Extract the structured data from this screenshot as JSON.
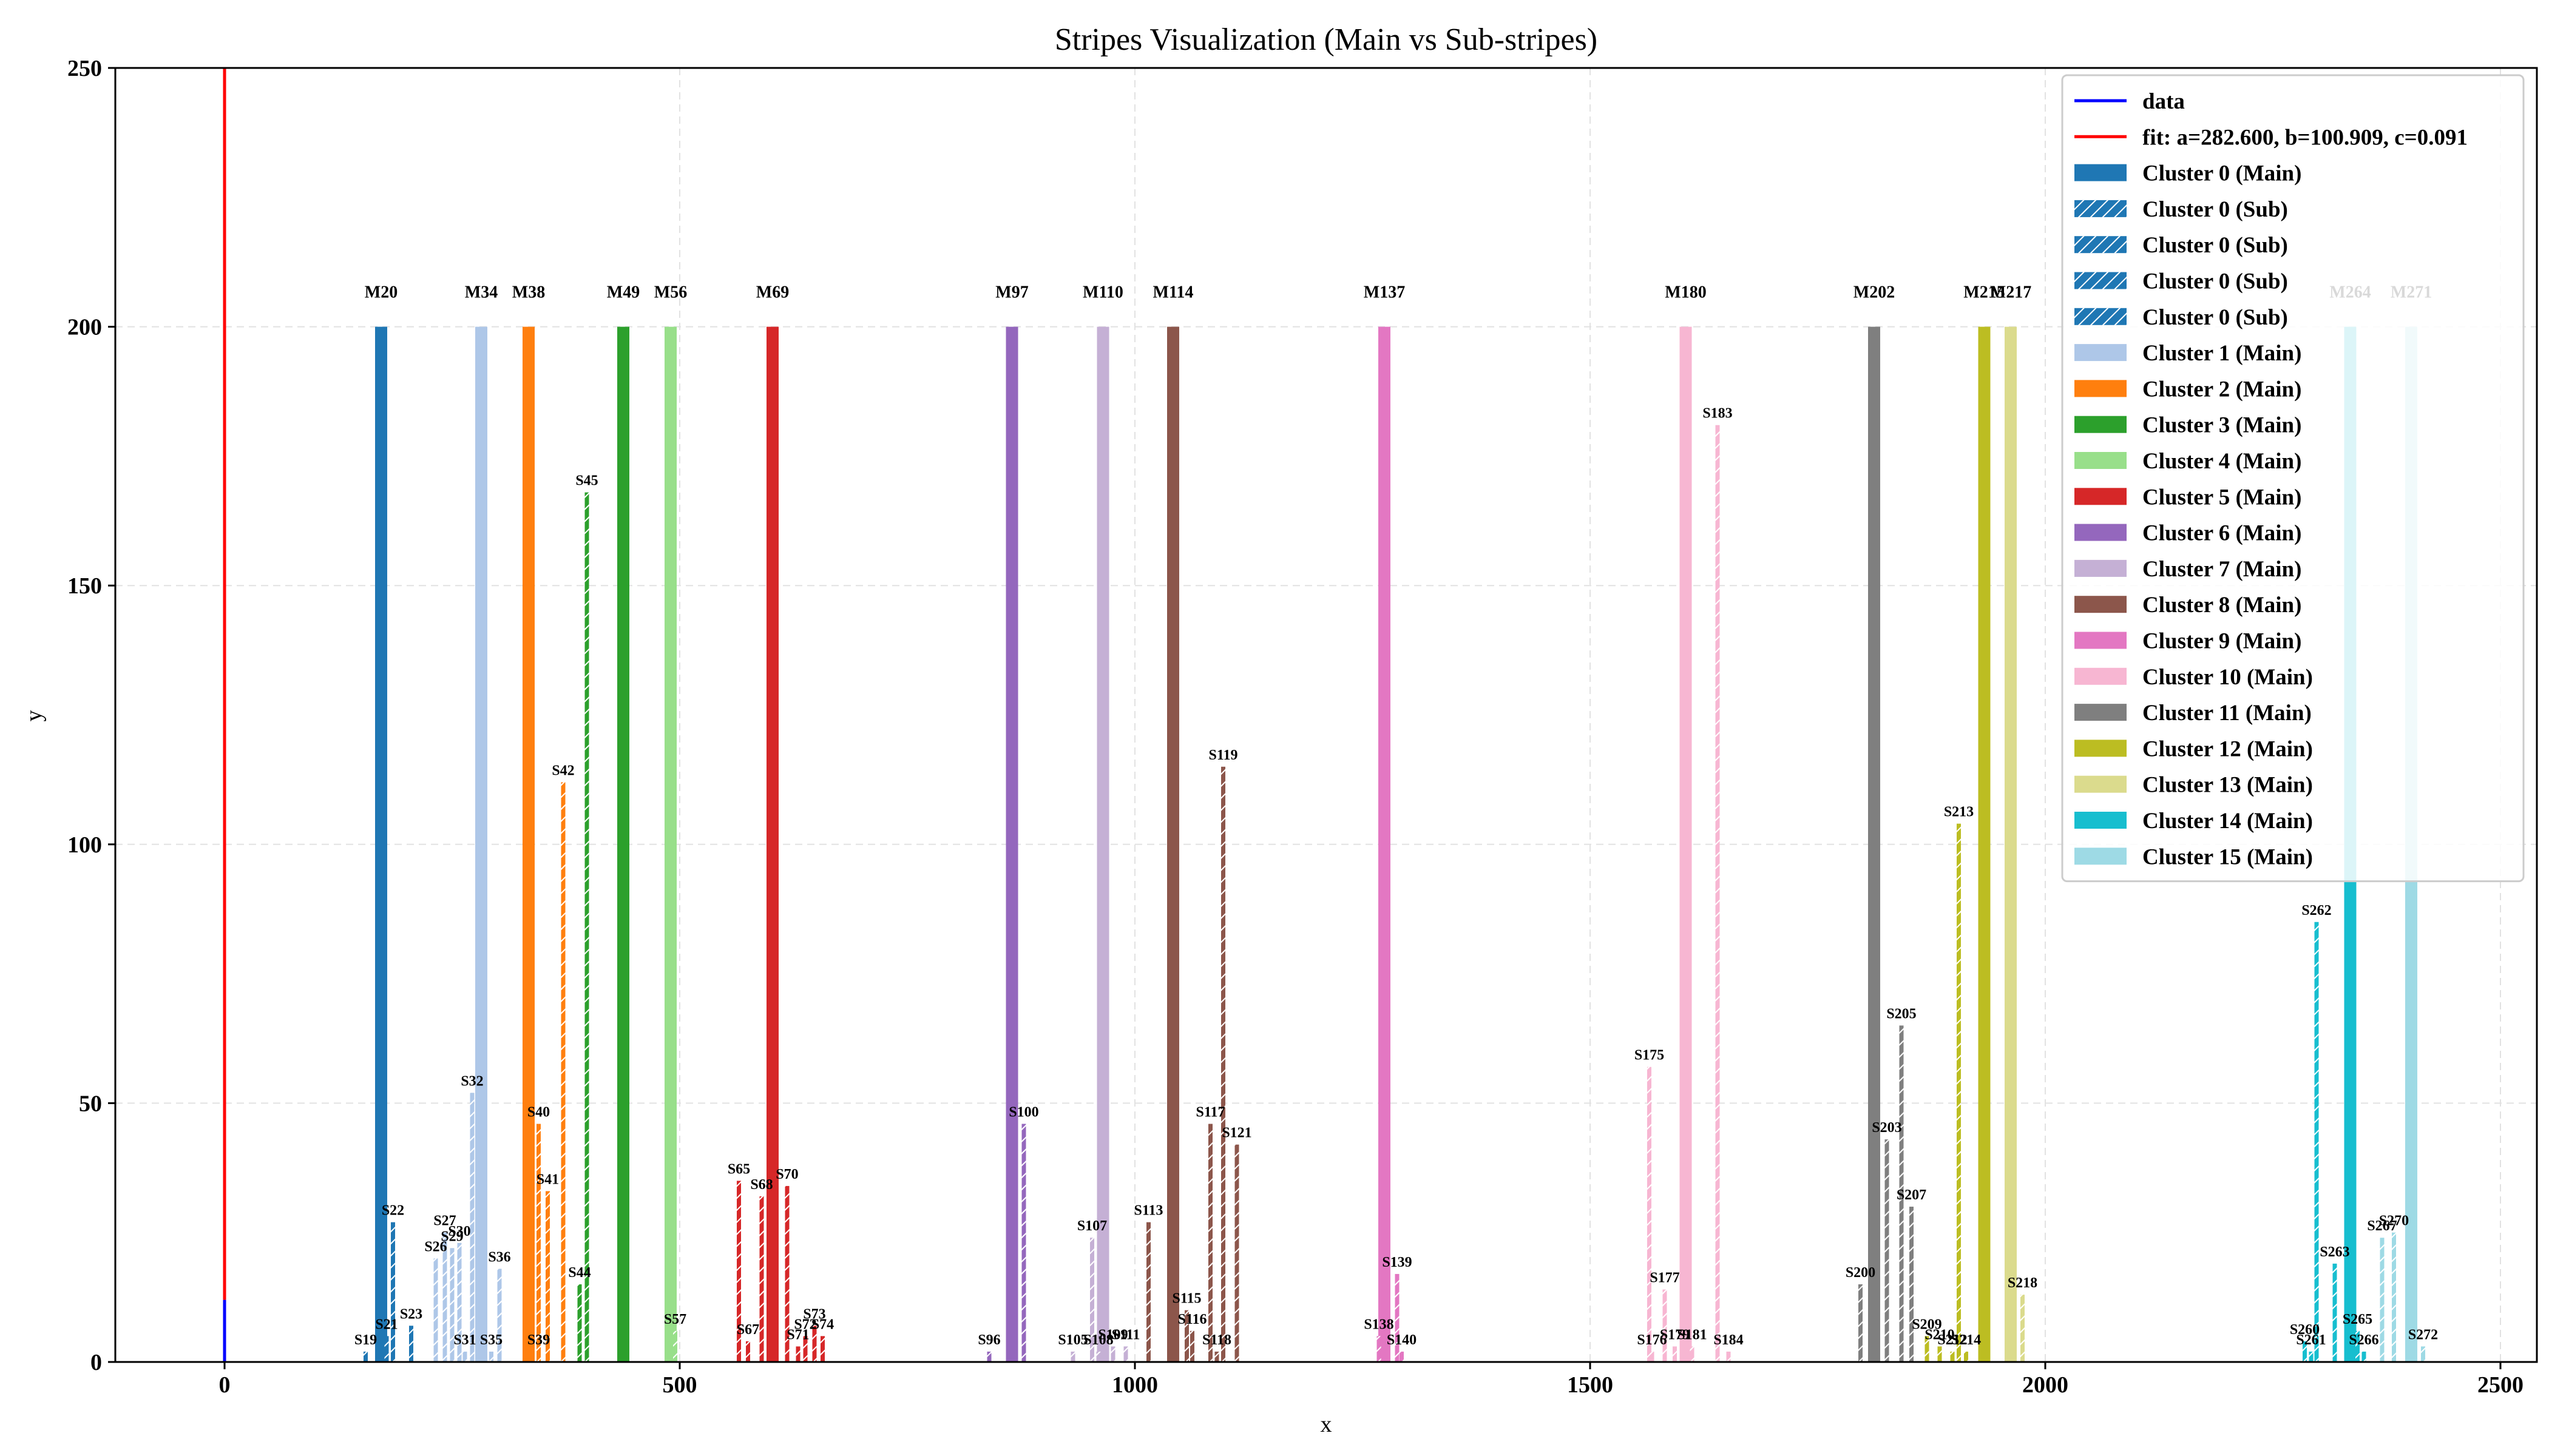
{
  "chart_data": {
    "type": "bar",
    "title": "Stripes Visualization (Main vs Sub-stripes)",
    "xlabel": "x",
    "ylabel": "y",
    "xlim": [
      -120,
      2540
    ],
    "ylim": [
      0,
      250
    ],
    "x_ticks": [
      0,
      500,
      1000,
      1500,
      2000,
      2500
    ],
    "y_ticks": [
      0,
      50,
      100,
      150,
      200,
      250
    ],
    "grid": true,
    "legend_position": "top-right",
    "legend": [
      {
        "label": "data",
        "kind": "line",
        "color": "#0000ff"
      },
      {
        "label": "fit: a=282.600, b=100.909, c=0.091",
        "kind": "line",
        "color": "#ff0000"
      },
      {
        "label": "Cluster 0 (Main)",
        "kind": "bar",
        "color": "#1f77b4"
      },
      {
        "label": "Cluster 0 (Sub)",
        "kind": "hatch",
        "color": "#1f77b4"
      },
      {
        "label": "Cluster 0 (Sub)",
        "kind": "hatch",
        "color": "#1f77b4"
      },
      {
        "label": "Cluster 0 (Sub)",
        "kind": "hatch",
        "color": "#1f77b4"
      },
      {
        "label": "Cluster 0 (Sub)",
        "kind": "hatch",
        "color": "#1f77b4"
      },
      {
        "label": "Cluster 1 (Main)",
        "kind": "bar",
        "color": "#aec7e8"
      },
      {
        "label": "Cluster 2 (Main)",
        "kind": "bar",
        "color": "#ff7f0e"
      },
      {
        "label": "Cluster 3 (Main)",
        "kind": "bar",
        "color": "#2ca02c"
      },
      {
        "label": "Cluster 4 (Main)",
        "kind": "bar",
        "color": "#98df8a"
      },
      {
        "label": "Cluster 5 (Main)",
        "kind": "bar",
        "color": "#d62728"
      },
      {
        "label": "Cluster 6 (Main)",
        "kind": "bar",
        "color": "#9467bd"
      },
      {
        "label": "Cluster 7 (Main)",
        "kind": "bar",
        "color": "#c5b0d5"
      },
      {
        "label": "Cluster 8 (Main)",
        "kind": "bar",
        "color": "#8c564b"
      },
      {
        "label": "Cluster 9 (Main)",
        "kind": "bar",
        "color": "#e377c2"
      },
      {
        "label": "Cluster 10 (Main)",
        "kind": "bar",
        "color": "#f7b6d2"
      },
      {
        "label": "Cluster 11 (Main)",
        "kind": "bar",
        "color": "#7f7f7f"
      },
      {
        "label": "Cluster 12 (Main)",
        "kind": "bar",
        "color": "#bcbd22"
      },
      {
        "label": "Cluster 13 (Main)",
        "kind": "bar",
        "color": "#dbdb8d"
      },
      {
        "label": "Cluster 14 (Main)",
        "kind": "bar",
        "color": "#17becf"
      },
      {
        "label": "Cluster 15 (Main)",
        "kind": "bar",
        "color": "#9edae5"
      }
    ],
    "lines": [
      {
        "name": "data",
        "color": "#0000ff",
        "x": [
          0,
          0
        ],
        "y": [
          0,
          12
        ]
      },
      {
        "name": "fit",
        "color": "#ff0000",
        "x": [
          0,
          0
        ],
        "y": [
          12,
          250
        ]
      }
    ],
    "main_stripes": [
      {
        "label": "M20",
        "x": 172,
        "y": 200,
        "color": "#1f77b4"
      },
      {
        "label": "M34",
        "x": 282,
        "y": 200,
        "color": "#aec7e8"
      },
      {
        "label": "M38",
        "x": 334,
        "y": 200,
        "color": "#ff7f0e"
      },
      {
        "label": "M49",
        "x": 438,
        "y": 200,
        "color": "#2ca02c"
      },
      {
        "label": "M56",
        "x": 490,
        "y": 200,
        "color": "#98df8a"
      },
      {
        "label": "M69",
        "x": 602,
        "y": 200,
        "color": "#d62728"
      },
      {
        "label": "M97",
        "x": 865,
        "y": 200,
        "color": "#9467bd"
      },
      {
        "label": "M110",
        "x": 965,
        "y": 200,
        "color": "#c5b0d5"
      },
      {
        "label": "M114",
        "x": 1042,
        "y": 200,
        "color": "#8c564b"
      },
      {
        "label": "M137",
        "x": 1274,
        "y": 200,
        "color": "#e377c2"
      },
      {
        "label": "M180",
        "x": 1605,
        "y": 200,
        "color": "#f7b6d2"
      },
      {
        "label": "M202",
        "x": 1812,
        "y": 200,
        "color": "#7f7f7f"
      },
      {
        "label": "M215",
        "x": 1933,
        "y": 200,
        "color": "#bcbd22"
      },
      {
        "label": "M217",
        "x": 1962,
        "y": 200,
        "color": "#dbdb8d"
      },
      {
        "label": "M264",
        "x": 2335,
        "y": 200,
        "color": "#17becf"
      },
      {
        "label": "M271",
        "x": 2402,
        "y": 200,
        "color": "#9edae5"
      }
    ],
    "sub_stripes": [
      {
        "label": "S19",
        "x": 155,
        "y": 2,
        "color": "#1f77b4"
      },
      {
        "label": "S21",
        "x": 178,
        "y": 5,
        "color": "#1f77b4"
      },
      {
        "label": "S22",
        "x": 185,
        "y": 27,
        "color": "#1f77b4"
      },
      {
        "label": "S23",
        "x": 205,
        "y": 7,
        "color": "#1f77b4"
      },
      {
        "label": "S26",
        "x": 232,
        "y": 20,
        "color": "#aec7e8"
      },
      {
        "label": "S27",
        "x": 242,
        "y": 25,
        "color": "#aec7e8"
      },
      {
        "label": "S29",
        "x": 250,
        "y": 22,
        "color": "#aec7e8"
      },
      {
        "label": "S30",
        "x": 258,
        "y": 23,
        "color": "#aec7e8"
      },
      {
        "label": "S31",
        "x": 264,
        "y": 2,
        "color": "#aec7e8"
      },
      {
        "label": "S32",
        "x": 272,
        "y": 52,
        "color": "#aec7e8"
      },
      {
        "label": "S35",
        "x": 293,
        "y": 2,
        "color": "#aec7e8"
      },
      {
        "label": "S36",
        "x": 302,
        "y": 18,
        "color": "#aec7e8"
      },
      {
        "label": "S39",
        "x": 345,
        "y": 2,
        "color": "#ff7f0e"
      },
      {
        "label": "S40",
        "x": 345,
        "y": 46,
        "color": "#ff7f0e"
      },
      {
        "label": "S41",
        "x": 355,
        "y": 33,
        "color": "#ff7f0e"
      },
      {
        "label": "S42",
        "x": 372,
        "y": 112,
        "color": "#ff7f0e"
      },
      {
        "label": "S44",
        "x": 390,
        "y": 15,
        "color": "#2ca02c"
      },
      {
        "label": "S45",
        "x": 398,
        "y": 168,
        "color": "#2ca02c"
      },
      {
        "label": "S57",
        "x": 495,
        "y": 6,
        "color": "#98df8a"
      },
      {
        "label": "S65",
        "x": 565,
        "y": 35,
        "color": "#d62728"
      },
      {
        "label": "S67",
        "x": 575,
        "y": 4,
        "color": "#d62728"
      },
      {
        "label": "S68",
        "x": 590,
        "y": 32,
        "color": "#d62728"
      },
      {
        "label": "S70",
        "x": 618,
        "y": 34,
        "color": "#d62728"
      },
      {
        "label": "S71",
        "x": 630,
        "y": 3,
        "color": "#d62728"
      },
      {
        "label": "S72",
        "x": 638,
        "y": 5,
        "color": "#d62728"
      },
      {
        "label": "S73",
        "x": 648,
        "y": 7,
        "color": "#d62728"
      },
      {
        "label": "S74",
        "x": 657,
        "y": 5,
        "color": "#d62728"
      },
      {
        "label": "S96",
        "x": 840,
        "y": 2,
        "color": "#9467bd"
      },
      {
        "label": "S100",
        "x": 878,
        "y": 46,
        "color": "#9467bd"
      },
      {
        "label": "S105",
        "x": 932,
        "y": 2,
        "color": "#c5b0d5"
      },
      {
        "label": "S107",
        "x": 953,
        "y": 24,
        "color": "#c5b0d5"
      },
      {
        "label": "S108",
        "x": 960,
        "y": 2,
        "color": "#c5b0d5"
      },
      {
        "label": "S109",
        "x": 976,
        "y": 3,
        "color": "#c5b0d5"
      },
      {
        "label": "S111",
        "x": 990,
        "y": 3,
        "color": "#c5b0d5"
      },
      {
        "label": "S113",
        "x": 1015,
        "y": 27,
        "color": "#8c564b"
      },
      {
        "label": "S115",
        "x": 1057,
        "y": 10,
        "color": "#8c564b"
      },
      {
        "label": "S116",
        "x": 1063,
        "y": 6,
        "color": "#8c564b"
      },
      {
        "label": "S117",
        "x": 1083,
        "y": 46,
        "color": "#8c564b"
      },
      {
        "label": "S118",
        "x": 1090,
        "y": 2,
        "color": "#8c564b"
      },
      {
        "label": "S119",
        "x": 1097,
        "y": 115,
        "color": "#8c564b"
      },
      {
        "label": "S121",
        "x": 1112,
        "y": 42,
        "color": "#8c564b"
      },
      {
        "label": "S138",
        "x": 1268,
        "y": 5,
        "color": "#e377c2"
      },
      {
        "label": "S139",
        "x": 1288,
        "y": 17,
        "color": "#e377c2"
      },
      {
        "label": "S140",
        "x": 1293,
        "y": 2,
        "color": "#e377c2"
      },
      {
        "label": "S175",
        "x": 1565,
        "y": 57,
        "color": "#f7b6d2"
      },
      {
        "label": "S176",
        "x": 1568,
        "y": 2,
        "color": "#f7b6d2"
      },
      {
        "label": "S177",
        "x": 1582,
        "y": 14,
        "color": "#f7b6d2"
      },
      {
        "label": "S179",
        "x": 1593,
        "y": 3,
        "color": "#f7b6d2"
      },
      {
        "label": "S181",
        "x": 1612,
        "y": 3,
        "color": "#f7b6d2"
      },
      {
        "label": "S183",
        "x": 1640,
        "y": 181,
        "color": "#f7b6d2"
      },
      {
        "label": "S184",
        "x": 1652,
        "y": 2,
        "color": "#f7b6d2"
      },
      {
        "label": "S200",
        "x": 1797,
        "y": 15,
        "color": "#7f7f7f"
      },
      {
        "label": "S203",
        "x": 1826,
        "y": 43,
        "color": "#7f7f7f"
      },
      {
        "label": "S205",
        "x": 1842,
        "y": 65,
        "color": "#7f7f7f"
      },
      {
        "label": "S207",
        "x": 1853,
        "y": 30,
        "color": "#7f7f7f"
      },
      {
        "label": "S209",
        "x": 1870,
        "y": 5,
        "color": "#bcbd22"
      },
      {
        "label": "S210",
        "x": 1884,
        "y": 3,
        "color": "#bcbd22"
      },
      {
        "label": "S212",
        "x": 1898,
        "y": 2,
        "color": "#bcbd22"
      },
      {
        "label": "S213",
        "x": 1905,
        "y": 104,
        "color": "#bcbd22"
      },
      {
        "label": "S214",
        "x": 1913,
        "y": 2,
        "color": "#bcbd22"
      },
      {
        "label": "S218",
        "x": 1975,
        "y": 13,
        "color": "#dbdb8d"
      },
      {
        "label": "S260",
        "x": 2285,
        "y": 4,
        "color": "#17becf"
      },
      {
        "label": "S261",
        "x": 2292,
        "y": 2,
        "color": "#17becf"
      },
      {
        "label": "S262",
        "x": 2298,
        "y": 85,
        "color": "#17becf"
      },
      {
        "label": "S263",
        "x": 2318,
        "y": 19,
        "color": "#17becf"
      },
      {
        "label": "S265",
        "x": 2343,
        "y": 6,
        "color": "#17becf"
      },
      {
        "label": "S266",
        "x": 2350,
        "y": 2,
        "color": "#17becf"
      },
      {
        "label": "S267",
        "x": 2370,
        "y": 24,
        "color": "#9edae5"
      },
      {
        "label": "S270",
        "x": 2383,
        "y": 25,
        "color": "#9edae5"
      },
      {
        "label": "S272",
        "x": 2415,
        "y": 3,
        "color": "#9edae5"
      }
    ]
  }
}
